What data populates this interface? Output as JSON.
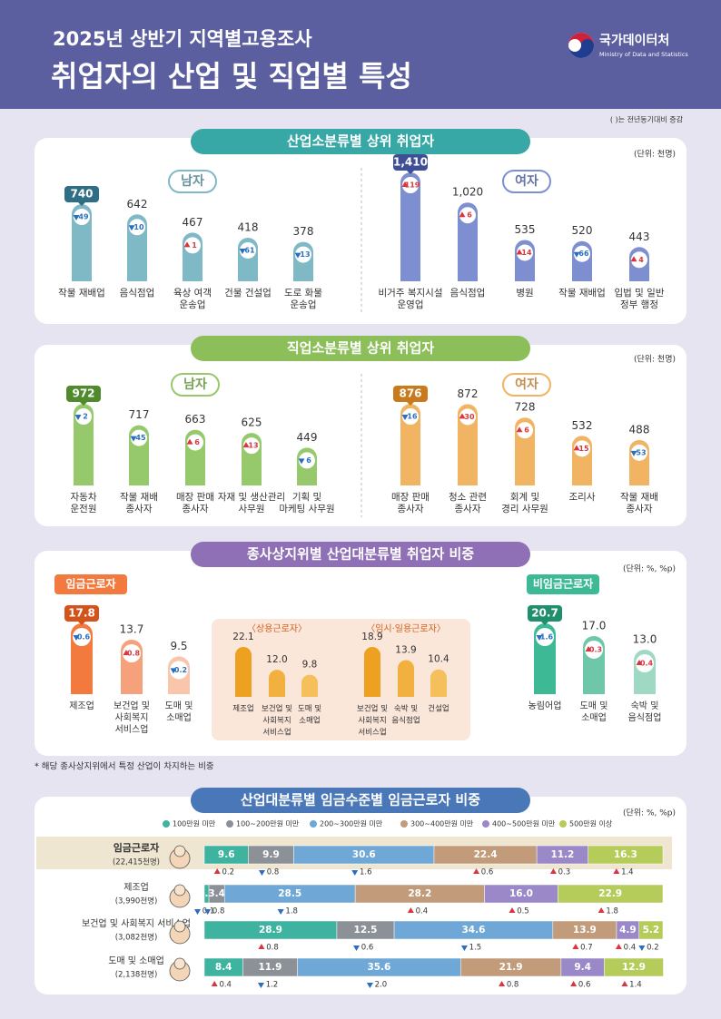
{
  "header": {
    "title_line1": "2025년 상반기 지역별고용조사",
    "title_line2": "취업자의 산업 및 직업별 특성",
    "logo": "국가데이터처",
    "logo_sub": "Ministry of Data and Statistics",
    "note": "( )는 전년동기대비 증감"
  },
  "industry_top": {
    "title": "산업소분류별 상위 취업자",
    "unit": "(단위: 천명)",
    "groups": [
      {
        "name": "남자",
        "color": "#7fb9c6",
        "highlight_color": "#2f6f85",
        "items": [
          {
            "label": [
              "작물 재배업"
            ],
            "value": 740,
            "change": 49,
            "dir": "down"
          },
          {
            "label": [
              "음식점업"
            ],
            "value": 642,
            "change": 10,
            "dir": "down"
          },
          {
            "label": [
              "육상 여객",
              "운송업"
            ],
            "value": 467,
            "change": 1,
            "dir": "up"
          },
          {
            "label": [
              "건물 건설업"
            ],
            "value": 418,
            "change": 61,
            "dir": "down"
          },
          {
            "label": [
              "도로 화물",
              "운송업"
            ],
            "value": 378,
            "change": 13,
            "dir": "down"
          }
        ]
      },
      {
        "name": "여자",
        "color": "#7d8fd0",
        "highlight_color": "#3f4f95",
        "items": [
          {
            "label": [
              "비거주 복지시설",
              "운영업"
            ],
            "value": 1410,
            "value_label": "1,410",
            "change": 119,
            "dir": "up"
          },
          {
            "label": [
              "음식점업"
            ],
            "value": 1020,
            "value_label": "1,020",
            "change": 6,
            "dir": "up"
          },
          {
            "label": [
              "병원"
            ],
            "value": 535,
            "change": 14,
            "dir": "up"
          },
          {
            "label": [
              "작물 재배업"
            ],
            "value": 520,
            "change": 66,
            "dir": "down"
          },
          {
            "label": [
              "입법 및 일반",
              "정부 행정"
            ],
            "value": 443,
            "change": 4,
            "dir": "up"
          }
        ]
      }
    ]
  },
  "occupation_top": {
    "title": "직업소분류별 상위 취업자",
    "unit": "(단위: 천명)",
    "groups": [
      {
        "name": "남자",
        "color": "#95c96c",
        "highlight_color": "#4f8a2c",
        "items": [
          {
            "label": [
              "자동차",
              "운전원"
            ],
            "value": 972,
            "change": 2,
            "dir": "down"
          },
          {
            "label": [
              "작물 재배",
              "종사자"
            ],
            "value": 717,
            "change": 45,
            "dir": "down"
          },
          {
            "label": [
              "매장 판매",
              "종사자"
            ],
            "value": 663,
            "change": 6,
            "dir": "up"
          },
          {
            "label": [
              "자재 및 생산관리",
              "사무원"
            ],
            "value": 625,
            "change": 13,
            "dir": "up"
          },
          {
            "label": [
              "기획 및",
              "마케팅 사무원"
            ],
            "value": 449,
            "change": 6,
            "dir": "down"
          }
        ]
      },
      {
        "name": "여자",
        "color": "#f0b463",
        "highlight_color": "#c97a1c",
        "items": [
          {
            "label": [
              "매장 판매",
              "종사자"
            ],
            "value": 876,
            "change": 16,
            "dir": "down"
          },
          {
            "label": [
              "청소 관련",
              "종사자"
            ],
            "value": 872,
            "change": 30,
            "dir": "up"
          },
          {
            "label": [
              "회계 및",
              "경리 사무원"
            ],
            "value": 728,
            "change": 6,
            "dir": "up"
          },
          {
            "label": [
              "조리사"
            ],
            "value": 532,
            "change": 15,
            "dir": "up"
          },
          {
            "label": [
              "작물 재배",
              "종사자"
            ],
            "value": 488,
            "change": 53,
            "dir": "down"
          }
        ]
      }
    ]
  },
  "status_share": {
    "title": "종사상지위별 산업대분류별 취업자 비중",
    "unit": "(단위: %, %p)",
    "footnote": "* 해당 종사상지위에서 특정 산업이 차지하는 비중",
    "groups": [
      {
        "name": "임금근로자",
        "colors": [
          "#f27a3f",
          "#f5a27c",
          "#f9c6ab"
        ],
        "highlight_color": "#d4531b",
        "items": [
          {
            "label": [
              "제조업"
            ],
            "value": 17.8,
            "change": 0.6,
            "dir": "down"
          },
          {
            "label": [
              "보건업 및",
              "사회복지",
              "서비스업"
            ],
            "value": 13.7,
            "change": 0.8,
            "dir": "up"
          },
          {
            "label": [
              "도매 및",
              "소매업"
            ],
            "value": 9.5,
            "change": 0.2,
            "dir": "down"
          }
        ]
      },
      {
        "name": "〈상용근로자〉",
        "colors": [
          "#eea021",
          "#f2b03e",
          "#f5c05c"
        ],
        "items": [
          {
            "label": [
              "제조업"
            ],
            "value": 22.1
          },
          {
            "label": [
              "보건업 및",
              "사회복지",
              "서비스업"
            ],
            "value": 12,
            "value_label": "12.0"
          },
          {
            "label": [
              "도매 및",
              "소매업"
            ],
            "value": 9.8
          }
        ]
      },
      {
        "name": "〈임시·일용근로자〉",
        "colors": [
          "#eea021",
          "#f2b03e",
          "#f5c05c"
        ],
        "items": [
          {
            "label": [
              "보건업 및",
              "사회복지",
              "서비스업"
            ],
            "value": 18.9
          },
          {
            "label": [
              "숙박 및",
              "음식점업"
            ],
            "value": 13.9
          },
          {
            "label": [
              "건설업"
            ],
            "value": 10.4
          }
        ]
      },
      {
        "name": "비임금근로자",
        "colors": [
          "#3db996",
          "#6fc7aa",
          "#9fd8c3"
        ],
        "highlight_color": "#1f8f6e",
        "items": [
          {
            "label": [
              "농림어업"
            ],
            "value": 20.7,
            "change": 1.6,
            "dir": "down"
          },
          {
            "label": [
              "도매 및",
              "소매업"
            ],
            "value": 17,
            "value_label": "17.0",
            "change": 0.3,
            "dir": "up"
          },
          {
            "label": [
              "숙박 및",
              "음식점업"
            ],
            "value": 13,
            "value_label": "13.0",
            "change": 0.4,
            "dir": "up"
          }
        ]
      }
    ]
  },
  "wage_distribution": {
    "title": "산업대분류별 임금수준별 임금근로자 비중",
    "unit": "(단위: %, %p)",
    "xlim": [
      0,
      100
    ],
    "legend": [
      {
        "name": "100만원 미만",
        "color": "#3db3a0"
      },
      {
        "name": "100~200만원 미만",
        "color": "#8c9097"
      },
      {
        "name": "200~300만원 미만",
        "color": "#6fa8d6"
      },
      {
        "name": "300~400만원 미만",
        "color": "#c29b7b"
      },
      {
        "name": "400~500만원 미만",
        "color": "#9a88c8"
      },
      {
        "name": "500만원 이상",
        "color": "#b5cc5a"
      }
    ],
    "rows": [
      {
        "name": "임금근로자",
        "count": {
          "value": 22415,
          "label": "(22,415천명)"
        },
        "values": [
          9.6,
          9.9,
          30.6,
          22.4,
          11.2,
          16.3
        ],
        "changes": [
          0.2,
          0.8,
          1.6,
          0.6,
          0.3,
          1.4
        ],
        "dirs": [
          "up",
          "down",
          "down",
          "up",
          "up",
          "up"
        ]
      },
      {
        "name": "제조업",
        "count": {
          "value": 3990,
          "label": "(3,990천명)"
        },
        "values": [
          {
            "value": 1,
            "label": "1.0"
          },
          3.4,
          28.5,
          28.2,
          {
            "value": 16,
            "label": "16.0"
          },
          22.9
        ],
        "changes": [
          0.1,
          0.8,
          1.8,
          0.4,
          0.5,
          1.8
        ],
        "dirs": [
          "down",
          "down",
          "down",
          "up",
          "up",
          "up"
        ]
      },
      {
        "name": "보건업 및 사회복지 서비스업",
        "count": {
          "value": 3082,
          "label": "(3,082천명)"
        },
        "values": [
          28.9,
          12.5,
          34.6,
          13.9,
          4.9,
          5.2
        ],
        "changes": [
          0.8,
          0.6,
          1.5,
          0.7,
          0.4,
          0.2
        ],
        "dirs": [
          "up",
          "down",
          "down",
          "up",
          "up",
          "down"
        ]
      },
      {
        "name": "도매 및 소매업",
        "count": {
          "value": 2138,
          "label": "(2,138천명)"
        },
        "values": [
          8.4,
          11.9,
          35.6,
          21.9,
          9.4,
          12.9
        ],
        "changes": [
          0.4,
          1.2,
          {
            "value": 2,
            "label": "2.0"
          },
          0.8,
          0.6,
          1.4
        ],
        "dirs": [
          "up",
          "down",
          "down",
          "up",
          "up",
          "up"
        ]
      }
    ]
  }
}
